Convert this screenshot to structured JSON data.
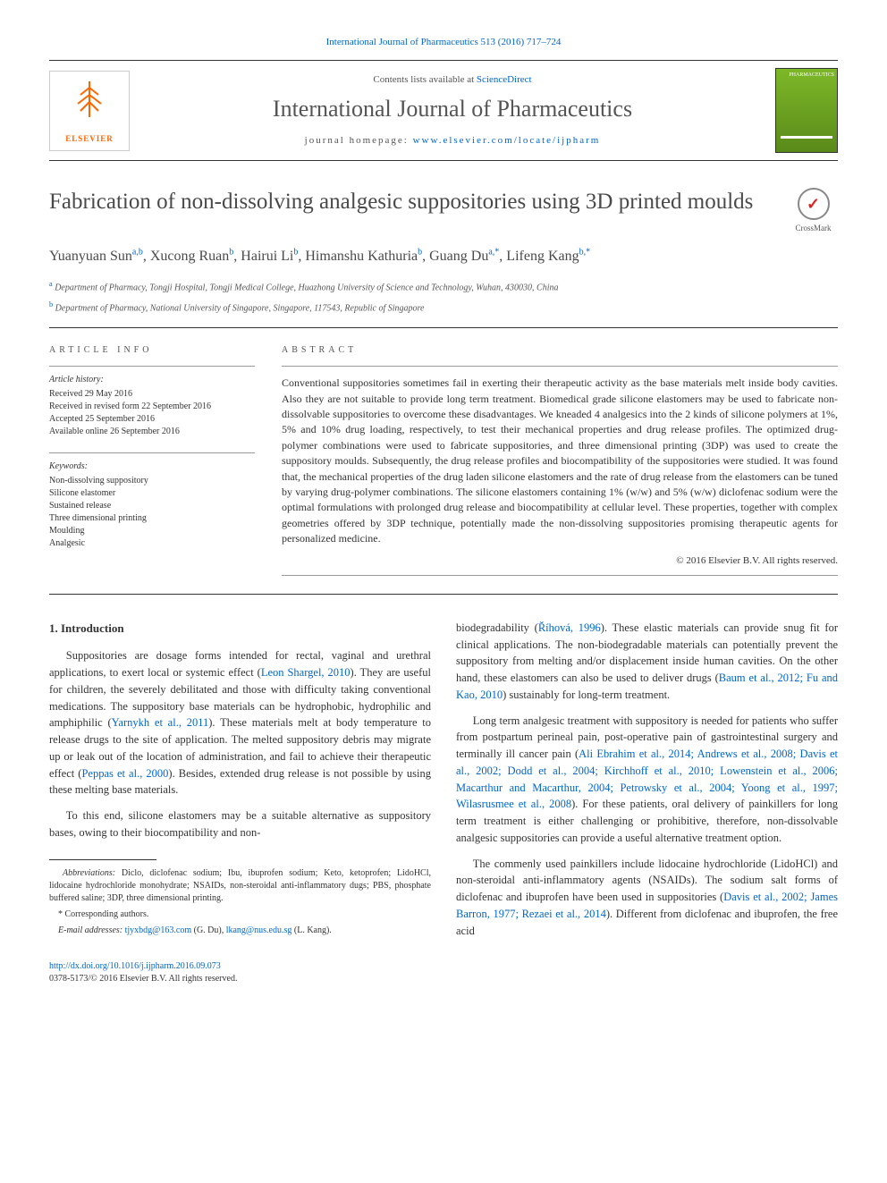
{
  "top_link": {
    "prefix": "",
    "journal": "International Journal of Pharmaceutics",
    "citation": "513 (2016) 717–724"
  },
  "header": {
    "contents_prefix": "Contents lists available at ",
    "contents_link": "ScienceDirect",
    "journal_name": "International Journal of Pharmaceutics",
    "homepage_prefix": "journal homepage: ",
    "homepage_url": "www.elsevier.com/locate/ijpharm",
    "elsevier": "ELSEVIER",
    "cover_label": "PHARMACEUTICS"
  },
  "crossmark": "CrossMark",
  "title": "Fabrication of non-dissolving analgesic suppositories using 3D printed moulds",
  "authors_html": "Yuanyuan Sun<sup>a,b</sup>, Xucong Ruan<sup>b</sup>, Hairui Li<sup>b</sup>, Himanshu Kathuria<sup>b</sup>, Guang Du<sup>a,*</sup>, Lifeng Kang<sup>b,*</sup>",
  "affiliations": [
    {
      "sup": "a",
      "text": "Department of Pharmacy, Tongji Hospital, Tongji Medical College, Huazhong University of Science and Technology, Wuhan, 430030, China"
    },
    {
      "sup": "b",
      "text": "Department of Pharmacy, National University of Singapore, Singapore, 117543, Republic of Singapore"
    }
  ],
  "article_info": {
    "label": "ARTICLE INFO",
    "history_title": "Article history:",
    "history": [
      "Received 29 May 2016",
      "Received in revised form 22 September 2016",
      "Accepted 25 September 2016",
      "Available online 26 September 2016"
    ],
    "keywords_title": "Keywords:",
    "keywords": [
      "Non-dissolving suppository",
      "Silicone elastomer",
      "Sustained release",
      "Three dimensional printing",
      "Moulding",
      "Analgesic"
    ]
  },
  "abstract": {
    "label": "ABSTRACT",
    "text": "Conventional suppositories sometimes fail in exerting their therapeutic activity as the base materials melt inside body cavities. Also they are not suitable to provide long term treatment. Biomedical grade silicone elastomers may be used to fabricate non-dissolvable suppositories to overcome these disadvantages. We kneaded 4 analgesics into the 2 kinds of silicone polymers at 1%, 5% and 10% drug loading, respectively, to test their mechanical properties and drug release profiles. The optimized drug-polymer combinations were used to fabricate suppositories, and three dimensional printing (3DP) was used to create the suppository moulds. Subsequently, the drug release profiles and biocompatibility of the suppositories were studied. It was found that, the mechanical properties of the drug laden silicone elastomers and the rate of drug release from the elastomers can be tuned by varying drug-polymer combinations. The silicone elastomers containing 1% (w/w) and 5% (w/w) diclofenac sodium were the optimal formulations with prolonged drug release and biocompatibility at cellular level. These properties, together with complex geometries offered by 3DP technique, potentially made the non-dissolving suppositories promising therapeutic agents for personalized medicine.",
    "copyright": "© 2016 Elsevier B.V. All rights reserved."
  },
  "body": {
    "intro_heading": "1. Introduction",
    "left_paras": [
      "Suppositories are dosage forms intended for rectal, vaginal and urethral applications, to exert local or systemic effect (<a href='#'>Leon Shargel, 2010</a>). They are useful for children, the severely debilitated and those with difficulty taking conventional medications. The suppository base materials can be hydrophobic, hydrophilic and amphiphilic (<a href='#'>Yarnykh et al., 2011</a>). These materials melt at body temperature to release drugs to the site of application. The melted suppository debris may migrate up or leak out of the location of administration, and fail to achieve their therapeutic effect (<a href='#'>Peppas et al., 2000</a>). Besides, extended drug release is not possible by using these melting base materials.",
      "To this end, silicone elastomers may be a suitable alternative as suppository bases, owing to their biocompatibility and non-"
    ],
    "right_paras": [
      "biodegradability (<a href='#'>Říhová, 1996</a>). These elastic materials can provide snug fit for clinical applications. The non-biodegradable materials can potentially prevent the suppository from melting and/or displacement inside human cavities. On the other hand, these elastomers can also be used to deliver drugs (<a href='#'>Baum et al., 2012; Fu and Kao, 2010</a>) sustainably for long-term treatment.",
      "Long term analgesic treatment with suppository is needed for patients who suffer from postpartum perineal pain, post-operative pain of gastrointestinal surgery and terminally ill cancer pain (<a href='#'>Ali Ebrahim et al., 2014; Andrews et al., 2008; Davis et al., 2002; Dodd et al., 2004; Kirchhoff et al., 2010; Lowenstein et al., 2006; Macarthur and Macarthur, 2004; Petrowsky et al., 2004; Yoong et al., 1997; Wilasrusmee et al., 2008</a>). For these patients, oral delivery of painkillers for long term treatment is either challenging or prohibitive, therefore, non-dissolvable analgesic suppositories can provide a useful alternative treatment option.",
      "The commenly used painkillers include lidocaine hydrochloride (LidoHCl) and non-steroidal anti-inflammatory agents (NSAIDs). The sodium salt forms of diclofenac and ibuprofen have been used in suppositories (<a href='#'>Davis et al., 2002; James Barron, 1977; Rezaei et al., 2014</a>). Different from diclofenac and ibuprofen, the free acid"
    ]
  },
  "footnotes": {
    "abbrev_label": "Abbreviations:",
    "abbrev_text": " Diclo, diclofenac sodium; Ibu, ibuprofen sodium; Keto, ketoprofen; LidoHCl, lidocaine hydrochloride monohydrate; NSAIDs, non-steroidal anti-inflammatory dugs; PBS, phosphate buffered saline; 3DP, three dimensional printing.",
    "corr": "* Corresponding authors.",
    "email_label": "E-mail addresses: ",
    "email1": "tjyxbdg@163.com",
    "email1_who": " (G. Du), ",
    "email2": "lkang@nus.edu.sg",
    "email2_who": " (L. Kang)."
  },
  "bottom": {
    "doi": "http://dx.doi.org/10.1016/j.ijpharm.2016.09.073",
    "issn": "0378-5173/© 2016 Elsevier B.V. All rights reserved."
  }
}
